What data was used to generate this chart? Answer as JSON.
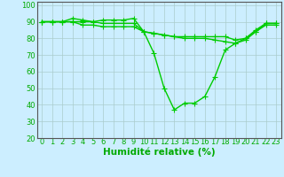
{
  "x": [
    0,
    1,
    2,
    3,
    4,
    5,
    6,
    7,
    8,
    9,
    10,
    11,
    12,
    13,
    14,
    15,
    16,
    17,
    18,
    19,
    20,
    21,
    22,
    23
  ],
  "line1": [
    90,
    90,
    90,
    92,
    91,
    90,
    91,
    91,
    91,
    92,
    84,
    71,
    50,
    37,
    41,
    41,
    45,
    57,
    73,
    77,
    80,
    85,
    89,
    89
  ],
  "line2": [
    90,
    90,
    90,
    90,
    90,
    90,
    89,
    89,
    89,
    89,
    84,
    83,
    82,
    81,
    81,
    81,
    81,
    81,
    81,
    79,
    80,
    84,
    89,
    89
  ],
  "line3": [
    90,
    90,
    90,
    90,
    88,
    88,
    87,
    87,
    87,
    87,
    84,
    83,
    82,
    81,
    80,
    80,
    80,
    79,
    78,
    77,
    79,
    84,
    88,
    88
  ],
  "line_color": "#00cc00",
  "bg_color": "#cceeff",
  "grid_color": "#aacccc",
  "xlabel": "Humidité relative (%)",
  "ylim": [
    20,
    102
  ],
  "xlim": [
    -0.5,
    23.5
  ],
  "yticks": [
    20,
    30,
    40,
    50,
    60,
    70,
    80,
    90,
    100
  ],
  "xticks": [
    0,
    1,
    2,
    3,
    4,
    5,
    6,
    7,
    8,
    9,
    10,
    11,
    12,
    13,
    14,
    15,
    16,
    17,
    18,
    19,
    20,
    21,
    22,
    23
  ],
  "marker": "+",
  "marker_size": 4,
  "line_width": 1.0,
  "xlabel_fontsize": 7.5,
  "tick_fontsize": 6.0,
  "xlabel_color": "#00aa00",
  "tick_color": "#00aa00"
}
